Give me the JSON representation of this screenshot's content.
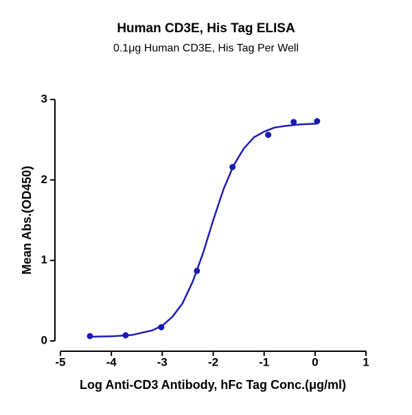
{
  "chart_data": {
    "type": "scatter",
    "title": "Human CD3E, His Tag ELISA",
    "subtitle": "0.1μg Human CD3E, His Tag Per Well",
    "x_label": "Log Anti-CD3 Antibody, hFc Tag Conc.(μg/ml)",
    "y_label": "Mean Abs.(OD450)",
    "xlim": [
      -5,
      1
    ],
    "xticks": [
      -5,
      -4,
      -3,
      -2,
      -1,
      0,
      1
    ],
    "ylim": [
      0,
      3
    ],
    "yticks": [
      0,
      1,
      2,
      3
    ],
    "grid": false,
    "series": [
      {
        "kind": "points",
        "color": "#1a1ab5",
        "x": [
          -4.42,
          -3.72,
          -3.02,
          -2.32,
          -1.62,
          -0.92,
          -0.42,
          0.04
        ],
        "values": [
          0.06,
          0.07,
          0.17,
          0.87,
          2.16,
          2.56,
          2.72,
          2.73
        ]
      },
      {
        "kind": "curve",
        "color": "#1a1ab5",
        "x": [
          -4.4,
          -4,
          -3.6,
          -3.2,
          -3,
          -2.8,
          -2.6,
          -2.4,
          -2.2,
          -2,
          -1.8,
          -1.6,
          -1.4,
          -1.2,
          -1,
          -0.8,
          -0.6,
          -0.3,
          0.04
        ],
        "values": [
          0.052,
          0.057,
          0.073,
          0.13,
          0.19,
          0.3,
          0.47,
          0.74,
          1.09,
          1.5,
          1.88,
          2.18,
          2.39,
          2.53,
          2.6,
          2.65,
          2.67,
          2.69,
          2.7
        ]
      }
    ]
  }
}
